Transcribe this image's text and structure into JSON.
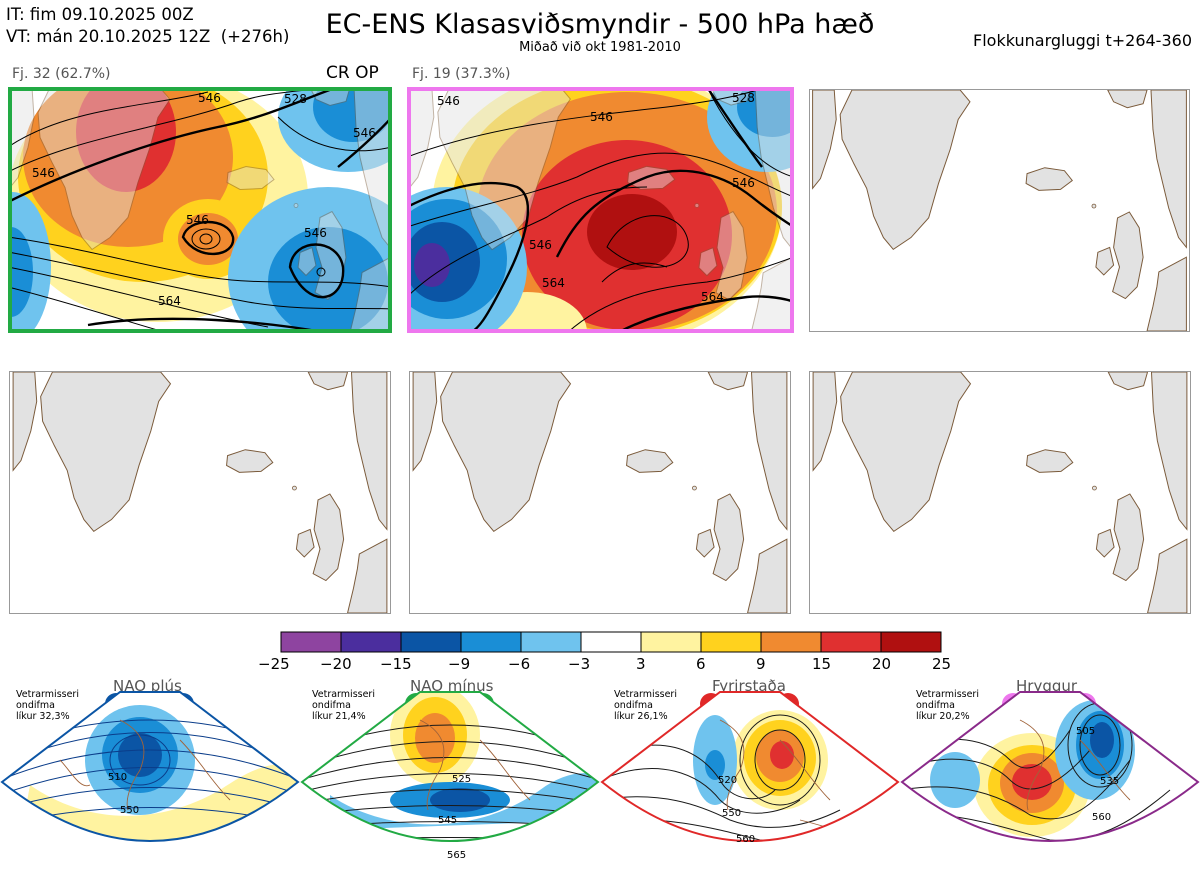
{
  "header": {
    "it_line": "IT: fim 09.10.2025 00Z",
    "vt_line": "VT: mán 20.10.2025 12Z  (+276h)",
    "title": "EC-ENS Klasasviðsmyndir - 500 hPa hæð",
    "subtitle": "Miðað við okt 1981-2010",
    "window": "Flokkunargluggi t+264-360"
  },
  "clusters": [
    {
      "label": "Fj. 32 (62.7%)",
      "extra": "CR OP",
      "border": "#22aa44"
    },
    {
      "label": "Fj. 19 (37.3%)",
      "extra": "",
      "border": "#ee77ee"
    }
  ],
  "contour_labels": {
    "panel1": [
      "546",
      "528",
      "546",
      "546",
      "546",
      "546",
      "564"
    ],
    "panel2": [
      "546",
      "546",
      "546",
      "528",
      "546",
      "564",
      "564"
    ]
  },
  "colorbar": {
    "ticks": [
      "−25",
      "−20",
      "−15",
      "−9",
      "−6",
      "−3",
      "3",
      "6",
      "9",
      "15",
      "20",
      "25"
    ],
    "colors": [
      "#8e44a0",
      "#4b2e9e",
      "#0b55a5",
      "#1a8ed6",
      "#6fc3ee",
      "#ffffff",
      "#fff3a0",
      "#ffd21e",
      "#f08a30",
      "#e03030",
      "#b01010"
    ]
  },
  "regimes": [
    {
      "name": "NAO plús",
      "note": "Vetrarmisseri\nondifma\nlíkur 32,3%",
      "color": "#0b55a5",
      "labels": [
        "510",
        "550"
      ]
    },
    {
      "name": "NAO mínus",
      "note": "Vetrarmisseri\nondifma\nlíkur 21,4%",
      "color": "#22aa44",
      "labels": [
        "525",
        "545",
        "565"
      ]
    },
    {
      "name": "Fyrirstaða",
      "note": "Vetrarmisseri\nondifma\nlíkur 26,1%",
      "color": "#e02828",
      "labels": [
        "520",
        "550",
        "560"
      ]
    },
    {
      "name": "Hryggur",
      "note": "Vetrarmisseri\nondifma\nlíkur 20,2%",
      "color": "#ee77ee",
      "labels": [
        "505",
        "535",
        "560"
      ]
    }
  ]
}
